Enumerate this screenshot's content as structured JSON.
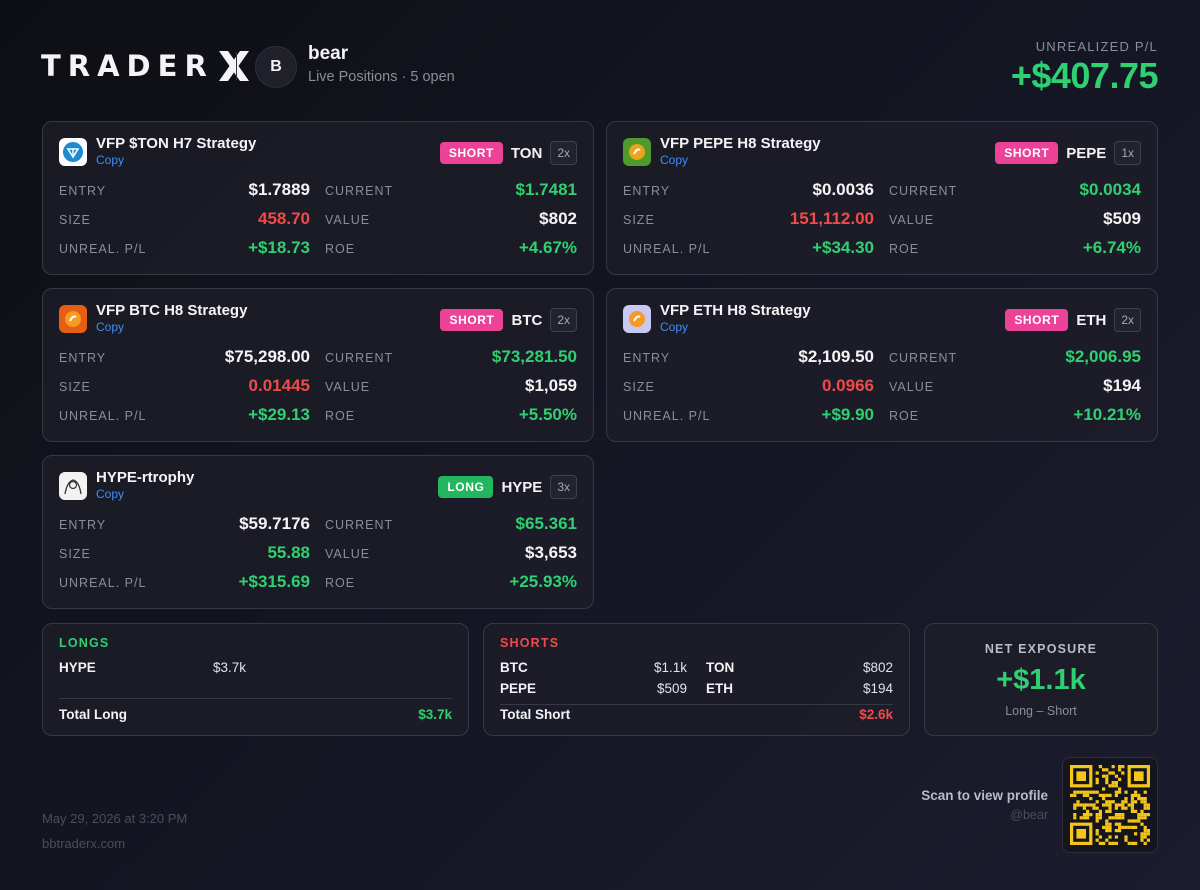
{
  "brand": {
    "logo_text": "TRADER"
  },
  "user": {
    "avatar_initial": "B",
    "name": "bear",
    "subline": "Live Positions · 5 open"
  },
  "summary": {
    "label": "UNREALIZED P/L",
    "value": "+$407.75"
  },
  "labels": {
    "entry": "ENTRY",
    "current": "CURRENT",
    "size": "SIZE",
    "value": "VALUE",
    "unreal_pl": "UNREAL. P/L",
    "roe": "ROE",
    "copy": "Copy"
  },
  "positions": [
    {
      "name": "VFP $TON H7 Strategy",
      "side": "SHORT",
      "ticker": "TON",
      "leverage": "2x",
      "icon": "ton-icon",
      "entry": "$1.7889",
      "current": "$1.7481",
      "size": "458.70",
      "value": "$802",
      "unreal": "+$18.73",
      "roe": "+4.67%"
    },
    {
      "name": "VFP PEPE H8 Strategy",
      "side": "SHORT",
      "ticker": "PEPE",
      "leverage": "1x",
      "icon": "pepe-icon",
      "entry": "$0.0036",
      "current": "$0.0034",
      "size": "151,112.00",
      "value": "$509",
      "unreal": "+$34.30",
      "roe": "+6.74%"
    },
    {
      "name": "VFP BTC H8 Strategy",
      "side": "SHORT",
      "ticker": "BTC",
      "leverage": "2x",
      "icon": "btc-icon",
      "entry": "$75,298.00",
      "current": "$73,281.50",
      "size": "0.01445",
      "value": "$1,059",
      "unreal": "+$29.13",
      "roe": "+5.50%"
    },
    {
      "name": "VFP ETH H8 Strategy",
      "side": "SHORT",
      "ticker": "ETH",
      "leverage": "2x",
      "icon": "eth-icon",
      "entry": "$2,109.50",
      "current": "$2,006.95",
      "size": "0.0966",
      "value": "$194",
      "unreal": "+$9.90",
      "roe": "+10.21%"
    },
    {
      "name": "HYPE-rtrophy",
      "side": "LONG",
      "ticker": "HYPE",
      "leverage": "3x",
      "icon": "hype-icon",
      "entry": "$59.7176",
      "current": "$65.361",
      "size": "55.88",
      "value": "$3,653",
      "unreal": "+$315.69",
      "roe": "+25.93%"
    }
  ],
  "longs": {
    "title": "LONGS",
    "items": [
      {
        "ticker": "HYPE",
        "value": "$3.7k"
      }
    ],
    "total_label": "Total Long",
    "total_value": "$3.7k"
  },
  "shorts": {
    "title": "SHORTS",
    "items": [
      {
        "ticker": "BTC",
        "value": "$1.1k"
      },
      {
        "ticker": "TON",
        "value": "$802"
      },
      {
        "ticker": "PEPE",
        "value": "$509"
      },
      {
        "ticker": "ETH",
        "value": "$194"
      }
    ],
    "total_label": "Total Short",
    "total_value": "$2.6k"
  },
  "net": {
    "label": "NET EXPOSURE",
    "value": "+$1.1k",
    "sub": "Long – Short"
  },
  "footer": {
    "date": "May 29, 2026 at 3:20 PM",
    "site": "bbtraderx.com",
    "scan": "Scan to view profile",
    "handle": "@bear"
  },
  "colors": {
    "accent_green": "#2fd071",
    "red": "#f04a4a",
    "short_badge": "#ec4399",
    "long_badge": "#22b75f",
    "link": "#3d8ef6",
    "qr": "#f5c518"
  }
}
